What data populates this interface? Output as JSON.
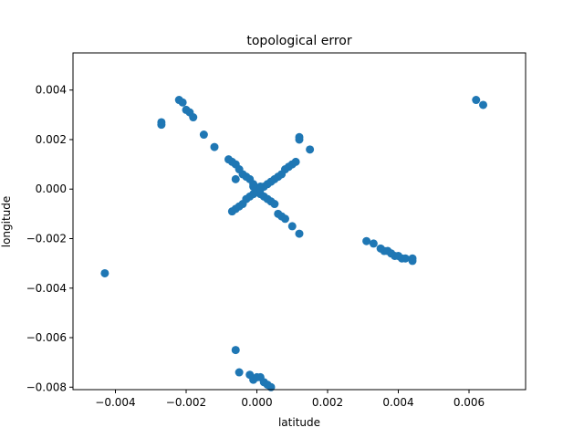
{
  "chart_data": {
    "type": "scatter",
    "title": "topological error",
    "xlabel": "latitude",
    "ylabel": "longitude",
    "xlim": [
      -0.0052,
      0.0076
    ],
    "ylim": [
      -0.0081,
      0.0055
    ],
    "xticks": [
      -0.004,
      -0.002,
      0.0,
      0.002,
      0.004,
      0.006
    ],
    "xtick_labels": [
      "−0.004",
      "−0.002",
      "0.000",
      "0.002",
      "0.004",
      "0.006"
    ],
    "yticks": [
      -0.008,
      -0.006,
      -0.004,
      -0.002,
      0.0,
      0.002,
      0.004
    ],
    "ytick_labels": [
      "−0.008",
      "−0.006",
      "−0.004",
      "−0.002",
      "0.000",
      "0.002",
      "0.004"
    ],
    "grid": false,
    "color": "#1f77b4",
    "series": [
      {
        "x": [
          -0.0022,
          -0.0021,
          -0.002,
          -0.0019,
          -0.0018,
          -0.0015,
          -0.0012,
          -0.0027,
          -0.0027,
          -0.0043,
          0.0062,
          0.0064,
          0.0031,
          0.0033,
          0.0035,
          0.0036,
          0.0037,
          0.0038,
          0.0039,
          0.004,
          0.0041,
          0.0042,
          0.0044,
          0.0044,
          -0.0006,
          -0.0005,
          -0.0002,
          -0.0001,
          0.0,
          0.0001,
          0.0002,
          0.0003,
          0.0004,
          0.0012,
          0.0012,
          0.0015,
          0.0011,
          0.001,
          0.0009,
          0.0008,
          0.0007,
          0.0006,
          0.0005,
          0.0004,
          0.0003,
          0.0002,
          0.0001,
          -0.0001,
          -0.0002,
          -0.0003,
          -0.0004,
          -0.0005,
          -0.0006,
          -0.0007,
          -0.0008,
          -0.0007,
          -0.0006,
          -0.0005,
          -0.0004,
          -0.0003,
          -0.0002,
          -0.0001,
          0.0,
          0.0001,
          0.0002,
          0.0003,
          0.0004,
          0.0005,
          0.0006,
          0.0007,
          0.0008,
          0.001,
          0.0012,
          -0.0006,
          0.0,
          0.0,
          -0.0001,
          0.0001
        ],
        "y": [
          0.0036,
          0.0035,
          0.0032,
          0.0031,
          0.0029,
          0.0022,
          0.0017,
          0.0027,
          0.0026,
          -0.0034,
          0.0036,
          0.0034,
          -0.0021,
          -0.0022,
          -0.0024,
          -0.0025,
          -0.0025,
          -0.0026,
          -0.0027,
          -0.0027,
          -0.0028,
          -0.0028,
          -0.0029,
          -0.0028,
          -0.0065,
          -0.0074,
          -0.0075,
          -0.0077,
          -0.0076,
          -0.0076,
          -0.0078,
          -0.0079,
          -0.008,
          0.0021,
          0.002,
          0.0016,
          0.0011,
          0.001,
          0.0009,
          0.0008,
          0.0006,
          0.0005,
          0.0004,
          0.0003,
          0.0002,
          0.0001,
          0.0001,
          0.0002,
          0.0004,
          0.0005,
          0.0006,
          0.0008,
          0.001,
          0.0011,
          0.0012,
          -0.0009,
          -0.0008,
          -0.0007,
          -0.0006,
          -0.0004,
          -0.0003,
          -0.0002,
          -0.0001,
          -0.0002,
          -0.0003,
          -0.0004,
          -0.0005,
          -0.0006,
          -0.001,
          -0.0011,
          -0.0012,
          -0.0015,
          -0.0018,
          0.0004,
          0.0,
          -0.0001,
          0.0001,
          0.0
        ]
      }
    ]
  }
}
